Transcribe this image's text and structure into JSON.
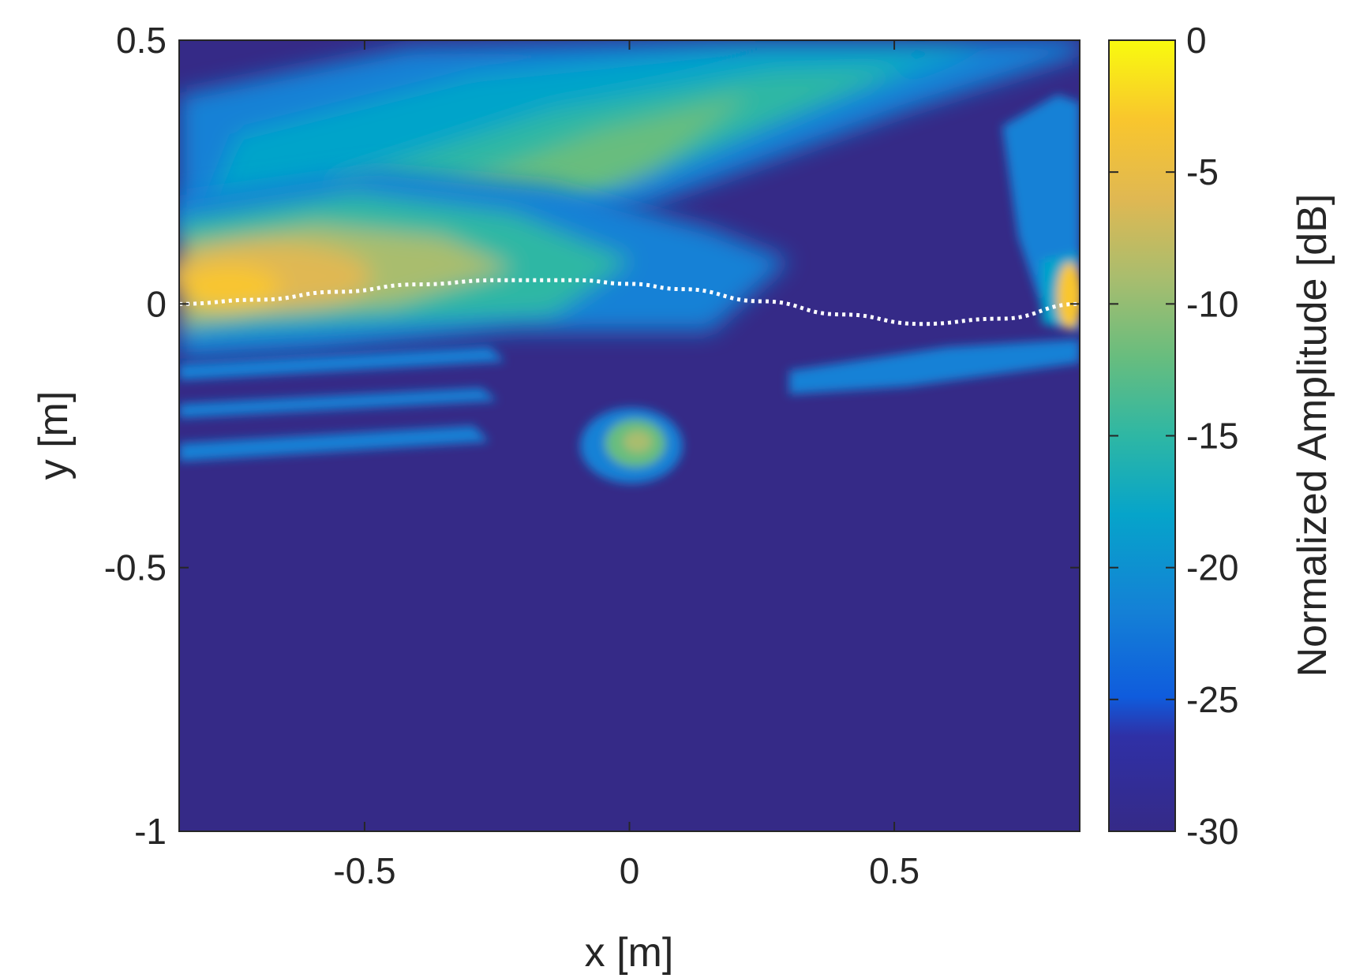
{
  "chart_data": {
    "type": "heatmap",
    "title": "",
    "xlabel": "x [m]",
    "ylabel": "y [m]",
    "xlim": [
      -0.85,
      0.85
    ],
    "ylim": [
      -1,
      0.5
    ],
    "x_ticks": [
      -0.5,
      0,
      0.5
    ],
    "x_tick_labels": [
      "-0.5",
      "0",
      "0.5"
    ],
    "y_ticks": [
      -1,
      -0.5,
      0,
      0.5
    ],
    "y_tick_labels": [
      "-1",
      "-0.5",
      "0",
      "0.5"
    ],
    "colormap": "parula",
    "colorbar": {
      "label": "Normalized Amplitude [dB]",
      "range": [
        -30,
        0
      ],
      "ticks": [
        0,
        -5,
        -10,
        -15,
        -20,
        -25,
        -30
      ],
      "tick_labels": [
        "0",
        "-5",
        "-10",
        "-15",
        "-20",
        "-25",
        "-30"
      ],
      "placement": "right"
    },
    "background_value_db": -30,
    "features": [
      {
        "name": "main beam",
        "shape": "elongated",
        "from": [
          -0.85,
          0.0
        ],
        "to": [
          -0.35,
          0.08
        ],
        "peak_db": -3
      },
      {
        "name": "upper diagonal lobe",
        "shape": "band",
        "from": [
          -0.85,
          0.22
        ],
        "to": [
          0.75,
          0.5
        ],
        "peak_db": -14
      },
      {
        "name": "lower side lobes",
        "shape": "stripes",
        "from": [
          -0.85,
          -0.25
        ],
        "to": [
          -0.3,
          -0.1
        ],
        "peak_db": -20
      },
      {
        "name": "focal spot",
        "shape": "blob",
        "center": [
          0.02,
          -0.26
        ],
        "peak_db": -10
      },
      {
        "name": "right edge spot",
        "shape": "blob",
        "center": [
          0.83,
          0.02
        ],
        "peak_db": -6
      }
    ],
    "series": [
      {
        "style": "dotted",
        "color": "#ffffff",
        "x": [
          -0.85,
          -0.7,
          -0.55,
          -0.4,
          -0.25,
          -0.1,
          0.0,
          0.1,
          0.25,
          0.4,
          0.55,
          0.7,
          0.85
        ],
        "y": [
          0.0,
          0.008,
          0.023,
          0.037,
          0.045,
          0.045,
          0.038,
          0.028,
          0.005,
          -0.02,
          -0.038,
          -0.028,
          0.0
        ]
      }
    ]
  }
}
